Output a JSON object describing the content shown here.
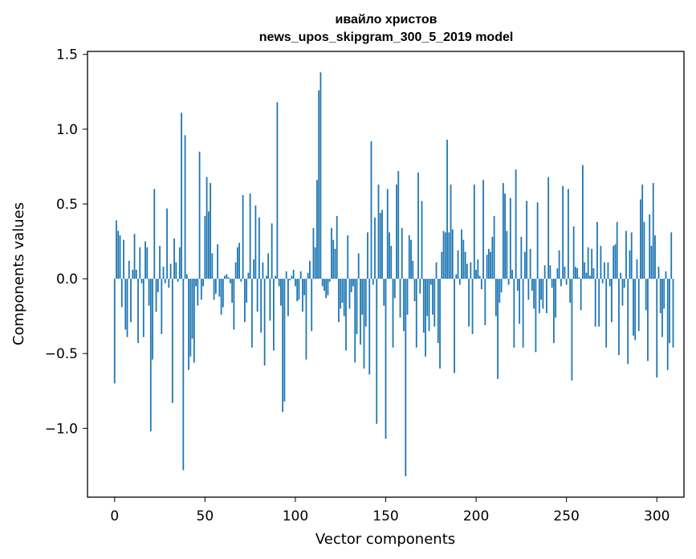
{
  "chart_data": {
    "type": "bar",
    "title_line1": "ивайло христов",
    "title_line2": "news_upos_skipgram_300_5_2019 model",
    "xlabel": "Vector components",
    "ylabel": "Components values",
    "xlim": [
      -15,
      315
    ],
    "ylim": [
      -1.46,
      1.52
    ],
    "xticks": [
      0,
      50,
      100,
      150,
      200,
      250,
      300
    ],
    "xtick_labels": [
      "0",
      "50",
      "100",
      "150",
      "200",
      "250",
      "300"
    ],
    "yticks": [
      -1.0,
      -0.5,
      0.0,
      0.5,
      1.0,
      1.5
    ],
    "ytick_labels": [
      "−1.0",
      "−0.5",
      "0.0",
      "0.5",
      "1.0",
      "1.5"
    ],
    "bar_color": "#1f77b4",
    "grid": false,
    "values": [
      -0.7,
      0.39,
      0.32,
      0.29,
      -0.19,
      0.26,
      -0.34,
      -0.39,
      0.12,
      -0.29,
      0.06,
      0.3,
      0.06,
      -0.43,
      0.21,
      -0.03,
      -0.39,
      0.25,
      0.21,
      -0.18,
      -1.02,
      -0.54,
      0.6,
      -0.22,
      -0.09,
      0.22,
      -0.37,
      0.08,
      -0.03,
      0.47,
      -0.06,
      0.1,
      -0.83,
      0.27,
      0.11,
      -0.02,
      0.21,
      1.11,
      -1.28,
      0.96,
      0.03,
      -0.61,
      -0.52,
      -0.4,
      -0.56,
      -0.05,
      -0.18,
      0.85,
      -0.14,
      -0.05,
      0.42,
      0.68,
      0.45,
      0.64,
      0.17,
      -0.14,
      -0.1,
      0.23,
      -0.12,
      -0.24,
      -0.19,
      0.02,
      0.03,
      0.01,
      -0.03,
      -0.16,
      -0.34,
      0.11,
      0.21,
      0.24,
      -0.02,
      0.56,
      -0.29,
      -0.16,
      0.04,
      0.57,
      -0.46,
      0.13,
      0.49,
      -0.22,
      0.41,
      -0.36,
      0.11,
      -0.58,
      0.02,
      0.17,
      -0.28,
      0.37,
      -0.48,
      0.02,
      1.18,
      -0.05,
      -0.18,
      -0.89,
      -0.82,
      0.05,
      -0.25,
      -0.01,
      0.02,
      0.06,
      -0.05,
      -0.15,
      -0.14,
      0.05,
      -0.22,
      -0.11,
      -0.54,
      0.04,
      0.12,
      -0.35,
      0.34,
      0.21,
      0.66,
      1.26,
      1.38,
      -0.05,
      -0.08,
      -0.13,
      -0.11,
      -0.02,
      0.34,
      0.26,
      0.2,
      0.42,
      -0.29,
      -0.2,
      -0.16,
      -0.25,
      -0.48,
      0.29,
      -0.2,
      -0.09,
      -0.05,
      -0.56,
      -0.37,
      0.17,
      -0.44,
      -0.24,
      -0.6,
      -0.32,
      0.31,
      -0.64,
      0.92,
      -0.04,
      0.41,
      -0.97,
      0.63,
      0.44,
      0.46,
      -0.18,
      -1.07,
      0.6,
      0.31,
      0.22,
      -0.46,
      -0.13,
      0.63,
      0.72,
      -0.26,
      0.34,
      -0.35,
      -1.32,
      -0.24,
      0.29,
      0.26,
      0.12,
      -0.15,
      -0.46,
      0.71,
      -0.1,
      0.52,
      -0.36,
      -0.52,
      -0.25,
      -0.35,
      -0.04,
      -0.24,
      -0.32,
      0.11,
      -0.43,
      -0.6,
      0.18,
      0.32,
      0.31,
      0.93,
      0.31,
      0.63,
      0.33,
      -0.63,
      0.03,
      0.19,
      -0.04,
      0.33,
      0.26,
      0.18,
      0.1,
      -0.32,
      0.11,
      -0.37,
      0.63,
      0.06,
      0.13,
      0.02,
      -0.07,
      0.66,
      -0.31,
      0.16,
      0.2,
      0.18,
      0.28,
      0.42,
      -0.25,
      -0.67,
      -0.16,
      -0.09,
      0.64,
      0.57,
      0.32,
      -0.04,
      0.54,
      0.06,
      -0.46,
      0.73,
      -0.08,
      -0.3,
      0.28,
      -0.46,
      0.18,
      0.52,
      -0.14,
      0.2,
      -0.08,
      -0.2,
      -0.49,
      0.51,
      -0.23,
      -0.14,
      -0.2,
      0.09,
      -0.23,
      0.68,
      0.09,
      -0.06,
      -0.43,
      -0.26,
      0.07,
      0.19,
      -0.05,
      0.62,
      0.08,
      -0.04,
      0.6,
      -0.16,
      -0.68,
      0.35,
      0.08,
      0.07,
      0.01,
      -0.21,
      0.76,
      0.11,
      0.04,
      0.21,
      0.02,
      0.2,
      0.07,
      -0.32,
      0.38,
      -0.32,
      0.22,
      -0.03,
      0.11,
      -0.46,
      0.11,
      -0.05,
      -0.29,
      0.22,
      0.23,
      0.38,
      -0.51,
      0.04,
      -0.18,
      -0.06,
      0.32,
      -0.57,
      0.19,
      0.31,
      -0.38,
      -0.41,
      0.13,
      -0.35,
      0.53,
      0.63,
      0.38,
      -0.21,
      -0.55,
      0.43,
      0.22,
      0.64,
      0.29,
      -0.66,
      0.08,
      -0.23,
      -0.39,
      -0.2,
      0.05,
      -0.61,
      -0.43,
      0.31,
      -0.46
    ]
  }
}
